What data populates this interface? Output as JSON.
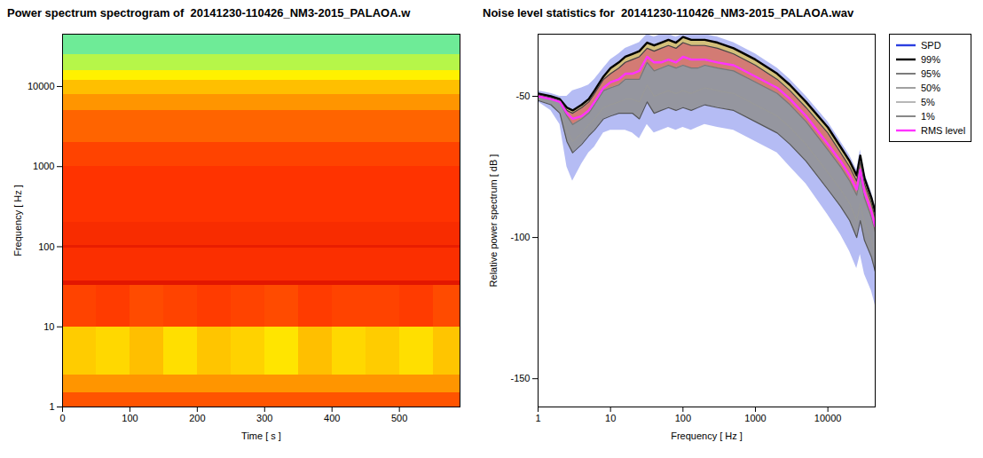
{
  "chart_data": [
    {
      "type": "heatmap",
      "title": "Power spectrum spectrogram of  20141230-110426_NM3-2015_PALAOA.w",
      "x_label": "Time [ s ]",
      "y_label": "Frequency [ Hz ]",
      "log": "y",
      "xlim": [
        0,
        590
      ],
      "ylim": [
        1,
        45000
      ],
      "xticks": [
        0,
        100,
        200,
        300,
        400,
        500
      ],
      "yticks": [
        1,
        10,
        100,
        1000,
        10000
      ],
      "x_bins": [
        0,
        50,
        100,
        150,
        200,
        250,
        300,
        350,
        400,
        450,
        500,
        550,
        590
      ],
      "y_bins": [
        1,
        1.5,
        2.5,
        10,
        33,
        37,
        95,
        105,
        200,
        1000,
        2000,
        5000,
        8000,
        12000,
        16000,
        25000,
        45000
      ],
      "z": [
        [
          -48,
          -48,
          -48,
          -48,
          -48,
          -48,
          -48,
          -48,
          -48,
          -48,
          -48,
          -48
        ],
        [
          -56,
          -56,
          -56,
          -56,
          -56,
          -56,
          -56,
          -56,
          -56,
          -56,
          -56,
          -56
        ],
        [
          -64,
          -66,
          -62,
          -67,
          -63,
          -65,
          -68,
          -62,
          -66,
          -64,
          -67,
          -63
        ],
        [
          -46,
          -45,
          -47,
          -46,
          -45,
          -46,
          -47,
          -45,
          -46,
          -46,
          -45,
          -47
        ],
        [
          -36,
          -36,
          -36,
          -36,
          -36,
          -36,
          -36,
          -36,
          -36,
          -36,
          -36,
          -36
        ],
        [
          -43,
          -43,
          -43,
          -43,
          -43,
          -43,
          -43,
          -43,
          -43,
          -43,
          -43,
          -43
        ],
        [
          -38,
          -38,
          -38,
          -38,
          -38,
          -38,
          -38,
          -38,
          -38,
          -38,
          -38,
          -38
        ],
        [
          -42,
          -42,
          -42,
          -42,
          -42,
          -42,
          -42,
          -42,
          -42,
          -42,
          -42,
          -42
        ],
        [
          -44,
          -44,
          -44,
          -44,
          -44,
          -44,
          -44,
          -44,
          -44,
          -44,
          -44,
          -44
        ],
        [
          -46,
          -46,
          -46,
          -46,
          -46,
          -46,
          -46,
          -46,
          -46,
          -46,
          -46,
          -46
        ],
        [
          -50,
          -50,
          -50,
          -50,
          -50,
          -50,
          -50,
          -50,
          -50,
          -50,
          -50,
          -50
        ],
        [
          -56,
          -56,
          -56,
          -56,
          -56,
          -56,
          -56,
          -56,
          -56,
          -56,
          -56,
          -56
        ],
        [
          -62,
          -62,
          -62,
          -62,
          -62,
          -62,
          -62,
          -62,
          -62,
          -62,
          -62,
          -62
        ],
        [
          -70,
          -70,
          -70,
          -70,
          -70,
          -70,
          -70,
          -70,
          -70,
          -70,
          -70,
          -70
        ],
        [
          -80,
          -80,
          -80,
          -80,
          -80,
          -80,
          -80,
          -80,
          -80,
          -80,
          -80,
          -80
        ],
        [
          -90,
          -90,
          -90,
          -90,
          -90,
          -90,
          -90,
          -90,
          -90,
          -90,
          -90,
          -90
        ]
      ],
      "zlim": [
        -100,
        -30
      ],
      "colors": [
        "#40e0d0",
        "#80f080",
        "#ffff00",
        "#ffa500",
        "#ff3300",
        "#cc0000"
      ]
    },
    {
      "type": "line",
      "title": "Noise level statistics for  20141230-110426_NM3-2015_PALAOA.wav",
      "x_label": "Frequency [ Hz ]",
      "y_label": "Relative power spectrum [ dB ]",
      "log": "x",
      "xlim": [
        1,
        45000
      ],
      "ylim": [
        -160,
        -28
      ],
      "xticks": [
        1,
        10,
        100,
        1000,
        10000
      ],
      "yticks": [
        -150,
        -100,
        -50
      ],
      "legend": "right",
      "x": [
        1,
        1.5,
        2,
        2.5,
        3,
        4,
        5,
        6,
        8,
        10,
        13,
        16,
        20,
        25,
        32,
        40,
        50,
        63,
        80,
        100,
        130,
        160,
        200,
        300,
        500,
        1000,
        2000,
        3000,
        5000,
        10000,
        15000,
        20000,
        25000,
        28000,
        32000,
        40000,
        45000
      ],
      "series": [
        {
          "name": "SPD",
          "color": "#2b3fe0",
          "type": "area",
          "values": [
            -48,
            -49,
            -50,
            -50,
            -48,
            -47,
            -46,
            -44,
            -40,
            -37,
            -35,
            -33,
            -32,
            -31,
            -28,
            -29,
            -28,
            -28,
            -29,
            -28,
            -28,
            -28,
            -28,
            -29,
            -31,
            -35,
            -40,
            -44,
            -50,
            -59,
            -66,
            -71,
            -76,
            -69,
            -77,
            -84,
            -89
          ],
          "low": [
            -52,
            -55,
            -60,
            -75,
            -80,
            -74,
            -70,
            -68,
            -63,
            -62,
            -62,
            -62,
            -63,
            -65,
            -60,
            -63,
            -62,
            -61,
            -62,
            -61,
            -62,
            -61,
            -60,
            -61,
            -62,
            -66,
            -70,
            -75,
            -81,
            -92,
            -99,
            -105,
            -111,
            -106,
            -113,
            -119,
            -124
          ]
        },
        {
          "name": "99%",
          "color": "#000000",
          "values": [
            -49,
            -50,
            -51,
            -54,
            -55,
            -53,
            -51,
            -48,
            -43,
            -40,
            -38,
            -36,
            -35,
            -34,
            -31,
            -32,
            -31,
            -30,
            -31,
            -29,
            -30,
            -30,
            -30,
            -31,
            -33,
            -37,
            -42,
            -46,
            -52,
            -61,
            -68,
            -73,
            -78,
            -71,
            -79,
            -86,
            -91
          ]
        },
        {
          "name": "95%",
          "color": "#444444",
          "values": [
            -49.5,
            -50.5,
            -51.5,
            -55,
            -56,
            -54,
            -52,
            -49,
            -44,
            -42,
            -40,
            -38,
            -37,
            -36,
            -33,
            -34,
            -33,
            -32,
            -33,
            -31,
            -32,
            -32,
            -32,
            -33,
            -35,
            -39,
            -44,
            -48,
            -54,
            -63,
            -70,
            -75,
            -80,
            -73,
            -81,
            -88,
            -93
          ]
        },
        {
          "name": "50%",
          "color": "#777777",
          "values": [
            -50,
            -51,
            -52,
            -57,
            -60,
            -58,
            -56,
            -53,
            -48,
            -47,
            -46,
            -44,
            -44,
            -44,
            -38,
            -41,
            -40,
            -39,
            -40,
            -39,
            -40,
            -40,
            -39,
            -40,
            -41,
            -45,
            -49,
            -53,
            -59,
            -69,
            -75,
            -80,
            -85,
            -78,
            -86,
            -93,
            -98
          ]
        },
        {
          "name": "5%",
          "color": "#999999",
          "values": [
            -51,
            -52,
            -54,
            -62,
            -66,
            -63,
            -60,
            -58,
            -54,
            -53,
            -52,
            -51,
            -51,
            -52,
            -46,
            -50,
            -49,
            -48,
            -49,
            -48,
            -49,
            -48,
            -47,
            -48,
            -49,
            -53,
            -57,
            -61,
            -67,
            -77,
            -83,
            -88,
            -94,
            -88,
            -95,
            -101,
            -106
          ]
        },
        {
          "name": "1%",
          "color": "#555555",
          "values": [
            -51.5,
            -53,
            -56,
            -66,
            -70,
            -67,
            -64,
            -62,
            -58,
            -57,
            -56,
            -56,
            -56,
            -58,
            -52,
            -56,
            -55,
            -54,
            -55,
            -54,
            -55,
            -54,
            -53,
            -54,
            -55,
            -59,
            -63,
            -67,
            -73,
            -83,
            -89,
            -94,
            -100,
            -94,
            -101,
            -107,
            -112
          ]
        },
        {
          "name": "RMS level",
          "color": "#ff33ff",
          "values": [
            -50,
            -51,
            -52,
            -56,
            -58,
            -57,
            -55,
            -52,
            -47,
            -45,
            -44,
            -42,
            -42,
            -41,
            -36,
            -38,
            -38,
            -37,
            -38,
            -36,
            -37,
            -37,
            -37,
            -38,
            -39,
            -43,
            -47,
            -51,
            -57,
            -67,
            -73,
            -78,
            -83,
            -76,
            -84,
            -91,
            -96
          ]
        }
      ]
    }
  ]
}
